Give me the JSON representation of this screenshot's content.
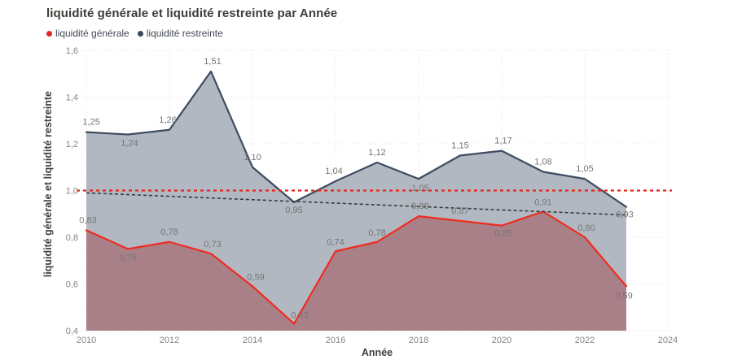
{
  "title": "liquidité générale et liquidité restreinte par Année",
  "legend": [
    {
      "label": "liquidité générale",
      "color": "#e8241f"
    },
    {
      "label": "liquidité restreinte",
      "color": "#39455a"
    }
  ],
  "chart_data": {
    "type": "area",
    "title": "liquidité générale et liquidité restreinte par Année",
    "xlabel": "Année",
    "ylabel": "liquidité générale et liquidité restreinte",
    "x": [
      2010,
      2011,
      2012,
      2013,
      2014,
      2015,
      2016,
      2017,
      2018,
      2019,
      2020,
      2021,
      2022,
      2023
    ],
    "series": [
      {
        "name": "liquidité générale",
        "line_color": "#f02b1f",
        "fill_color": "#a98088",
        "values": [
          0.83,
          0.75,
          0.78,
          0.73,
          0.59,
          0.43,
          0.74,
          0.78,
          0.89,
          0.87,
          0.85,
          0.91,
          0.8,
          0.59
        ],
        "label_offsets": [
          [
            2,
            -9
          ],
          [
            0,
            14
          ],
          [
            0,
            -9
          ],
          [
            2,
            -8
          ],
          [
            4,
            -8
          ],
          [
            7,
            -7
          ],
          [
            0,
            -8
          ],
          [
            0,
            -8
          ],
          [
            2,
            -9
          ],
          [
            0,
            -9
          ],
          [
            2,
            13
          ],
          [
            0,
            -8
          ],
          [
            2,
            -8
          ],
          [
            -3,
            15
          ]
        ]
      },
      {
        "name": "liquidité restreinte",
        "line_color": "#3e4c61",
        "fill_color": "#b2b8c1",
        "values": [
          1.25,
          1.24,
          1.26,
          1.51,
          1.1,
          0.95,
          1.04,
          1.12,
          1.05,
          1.15,
          1.17,
          1.08,
          1.05,
          0.93
        ],
        "label_offsets": [
          [
            6,
            -9
          ],
          [
            2,
            14
          ],
          [
            -2,
            -9
          ],
          [
            2,
            -9
          ],
          [
            0,
            -9
          ],
          [
            0,
            13
          ],
          [
            -2,
            -9
          ],
          [
            0,
            -9
          ],
          [
            2,
            15
          ],
          [
            0,
            -9
          ],
          [
            2,
            -9
          ],
          [
            0,
            -9
          ],
          [
            0,
            -9
          ],
          [
            -2,
            13
          ]
        ]
      }
    ],
    "xlim": [
      2010,
      2024
    ],
    "xtick_step": 2,
    "ylim": [
      0.4,
      1.6
    ],
    "ytick_step": 0.2,
    "grid": "dotted",
    "legend_position": "top-left",
    "data_labels": true,
    "decimal_separator": ",",
    "reference_line": {
      "value": 1.0,
      "color": "#e8251d",
      "style": "dashed"
    },
    "trend_line": {
      "start": 0.99,
      "end": 0.895,
      "color": "#3a3a3a",
      "style": "dashed"
    },
    "colors": {
      "grid": "#dedede",
      "tick_label": "#848484",
      "data_label": "#757575"
    }
  }
}
